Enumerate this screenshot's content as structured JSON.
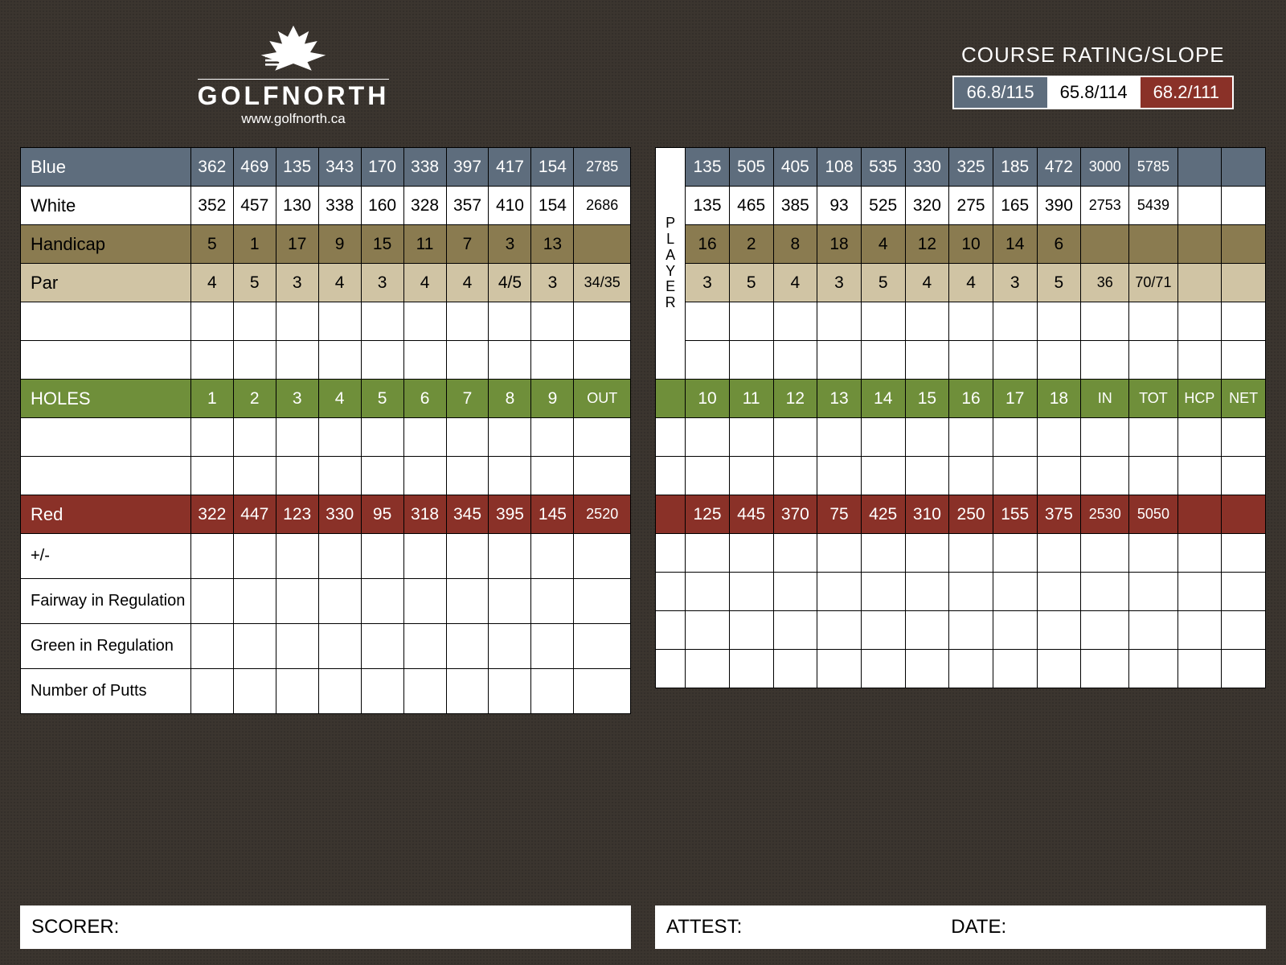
{
  "logo": {
    "brand_upper": "GOLFNORTH",
    "url": "www.golfnorth.ca"
  },
  "rating": {
    "title": "COURSE RATING/SLOPE",
    "boxes": [
      {
        "text": "66.8/115",
        "bg": "#5e6d7d",
        "fg": "#ffffff"
      },
      {
        "text": "65.8/114",
        "bg": "#ffffff",
        "fg": "#000000"
      },
      {
        "text": "68.2/111",
        "bg": "#8a3128",
        "fg": "#ffffff"
      }
    ]
  },
  "colors": {
    "blue": "#5e6d7d",
    "white": "#ffffff",
    "handicap": "#8a7b50",
    "par": "#d0c4a4",
    "holes": "#6f8f3a",
    "red": "#8a3128",
    "background": "#3b352f",
    "grid": "#000000"
  },
  "row_labels": {
    "blue": "Blue",
    "white": "White",
    "handicap": "Handicap",
    "par": "Par",
    "holes": "HOLES",
    "red": "Red",
    "plusminus": "+/-",
    "fairway": "Fairway in Regulation",
    "green": "Green in Regulation",
    "putts": "Number of Putts",
    "player": "PLAYER"
  },
  "sum_labels": {
    "out": "OUT",
    "in": "IN",
    "tot": "TOT",
    "hcp": "HCP",
    "net": "NET"
  },
  "front": {
    "holes": [
      "1",
      "2",
      "3",
      "4",
      "5",
      "6",
      "7",
      "8",
      "9"
    ],
    "blue": {
      "v": [
        "362",
        "469",
        "135",
        "343",
        "170",
        "338",
        "397",
        "417",
        "154"
      ],
      "sum": "2785"
    },
    "white": {
      "v": [
        "352",
        "457",
        "130",
        "338",
        "160",
        "328",
        "357",
        "410",
        "154"
      ],
      "sum": "2686"
    },
    "handicap": {
      "v": [
        "5",
        "1",
        "17",
        "9",
        "15",
        "11",
        "7",
        "3",
        "13"
      ],
      "sum": ""
    },
    "par": {
      "v": [
        "4",
        "5",
        "3",
        "4",
        "3",
        "4",
        "4",
        "4/5",
        "3"
      ],
      "sum": "34/35"
    },
    "red": {
      "v": [
        "322",
        "447",
        "123",
        "330",
        "95",
        "318",
        "345",
        "395",
        "145"
      ],
      "sum": "2520"
    }
  },
  "back": {
    "holes": [
      "10",
      "11",
      "12",
      "13",
      "14",
      "15",
      "16",
      "17",
      "18"
    ],
    "blue": {
      "v": [
        "135",
        "505",
        "405",
        "108",
        "535",
        "330",
        "325",
        "185",
        "472"
      ],
      "sum": "3000",
      "tot": "5785"
    },
    "white": {
      "v": [
        "135",
        "465",
        "385",
        "93",
        "525",
        "320",
        "275",
        "165",
        "390"
      ],
      "sum": "2753",
      "tot": "5439"
    },
    "handicap": {
      "v": [
        "16",
        "2",
        "8",
        "18",
        "4",
        "12",
        "10",
        "14",
        "6"
      ],
      "sum": "",
      "tot": ""
    },
    "par": {
      "v": [
        "3",
        "5",
        "4",
        "3",
        "5",
        "4",
        "4",
        "3",
        "5"
      ],
      "sum": "36",
      "tot": "70/71"
    },
    "red": {
      "v": [
        "125",
        "445",
        "370",
        "75",
        "425",
        "310",
        "250",
        "155",
        "375"
      ],
      "sum": "2530",
      "tot": "5050"
    }
  },
  "footer": {
    "scorer": "SCORER:",
    "attest": "ATTEST:",
    "date": "DATE:"
  }
}
